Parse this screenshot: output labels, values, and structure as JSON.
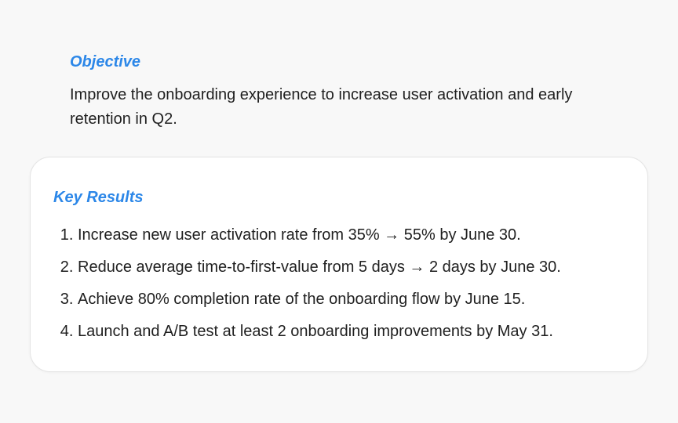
{
  "objective": {
    "label": "Objective",
    "text": "Improve the onboarding experience to increase user activation and early retention in Q2."
  },
  "key_results": {
    "label": "Key Results",
    "items": [
      {
        "number": "1.",
        "text": "Increase new user activation rate from 35% → 55% by June 30."
      },
      {
        "number": "2.",
        "text": "Reduce average time-to-first-value from 5 days → 2 days by June 30."
      },
      {
        "number": "3.",
        "text": "Achieve 80% completion rate of the onboarding flow by June 15."
      },
      {
        "number": "4.",
        "text": "Launch and A/B test at least 2 onboarding improvements by May 31."
      }
    ]
  },
  "colors": {
    "accent": "#2c87e8",
    "text": "#1f1f1f",
    "background": "#f8f8f8",
    "card": "#ffffff"
  }
}
